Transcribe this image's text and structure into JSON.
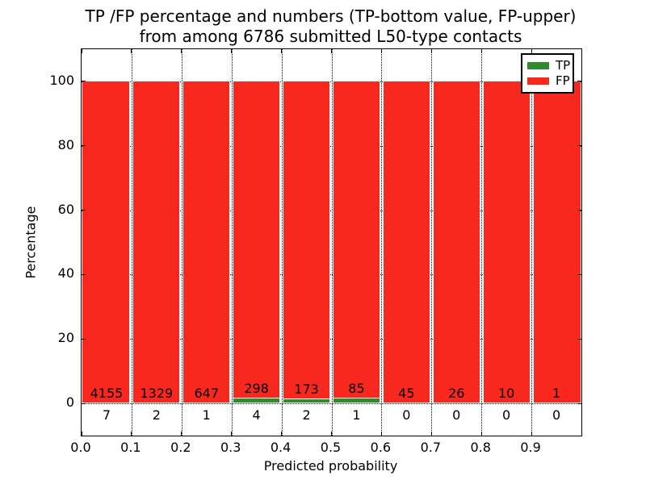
{
  "chart_data": {
    "type": "bar",
    "subtype": "stacked-percentage",
    "title_line1": "TP /FP percentage and numbers (TP-bottom value, FP-upper)",
    "title_line2": "from among 6786 submitted L50-type contacts",
    "xlabel": "Predicted probability",
    "ylabel": "Percentage",
    "xlim": [
      0.0,
      1.0
    ],
    "ylim": [
      -10,
      110
    ],
    "grid": "dotted",
    "x_tick_labels": [
      "0.0",
      "0.1",
      "0.2",
      "0.3",
      "0.4",
      "0.5",
      "0.6",
      "0.7",
      "0.8",
      "0.9"
    ],
    "y_tick_labels": [
      "0",
      "20",
      "40",
      "60",
      "80",
      "100"
    ],
    "y_tick_values": [
      0,
      20,
      40,
      60,
      80,
      100
    ],
    "bin_starts": [
      0.0,
      0.1,
      0.2,
      0.3,
      0.4,
      0.5,
      0.6,
      0.7,
      0.8,
      0.9
    ],
    "bin_width": 0.1,
    "series": [
      {
        "name": "TP",
        "color": "#2e8b2e",
        "counts": [
          7,
          2,
          1,
          4,
          2,
          1,
          0,
          0,
          0,
          0
        ]
      },
      {
        "name": "FP",
        "color": "#f8281e",
        "counts": [
          4155,
          1329,
          647,
          298,
          173,
          85,
          45,
          26,
          10,
          1
        ]
      }
    ],
    "tp_percent": [
      0.17,
      0.15,
      0.15,
      1.32,
      1.14,
      1.16,
      0,
      0,
      0,
      0
    ],
    "fp_percent": [
      99.83,
      99.85,
      99.85,
      98.68,
      98.86,
      98.84,
      100,
      100,
      100,
      100
    ],
    "total_submitted": "6786",
    "legend": {
      "position": "upper right",
      "entries": [
        {
          "label": "TP",
          "color": "#2e8b2e"
        },
        {
          "label": "FP",
          "color": "#f8281e"
        }
      ]
    }
  }
}
